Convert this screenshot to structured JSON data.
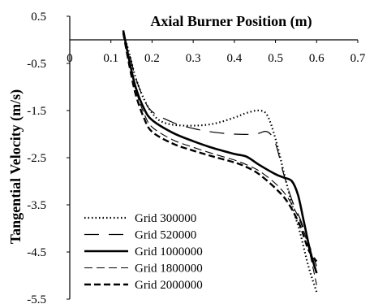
{
  "chart_data": {
    "type": "line",
    "xlabel": "Axial Burner Position (m)",
    "ylabel": "Tangential Velocity (m/s)",
    "xlim": [
      0,
      0.7
    ],
    "ylim": [
      -5.5,
      0.5
    ],
    "xticks": [
      "0",
      "0.1",
      "0.2",
      "0.3",
      "0.4",
      "0.5",
      "0.6",
      "0.7"
    ],
    "yticks": [
      "0.5",
      "-0.5",
      "-1.5",
      "-2.5",
      "-3.5",
      "-4.5",
      "-5.5"
    ],
    "x_axis_position": "top (crosses at y = 0)",
    "grid": false,
    "legend_position": "bottom-left",
    "series": [
      {
        "name": "Grid 300000",
        "style": "dotted",
        "x": [
          0.13,
          0.145,
          0.16,
          0.18,
          0.2,
          0.22,
          0.25,
          0.3,
          0.35,
          0.4,
          0.43,
          0.46,
          0.48,
          0.5,
          0.52,
          0.54,
          0.56,
          0.58,
          0.6
        ],
        "y": [
          0.15,
          -0.3,
          -0.8,
          -1.25,
          -1.55,
          -1.72,
          -1.8,
          -1.82,
          -1.78,
          -1.65,
          -1.55,
          -1.5,
          -1.6,
          -2.1,
          -2.8,
          -3.5,
          -4.1,
          -4.8,
          -5.35
        ]
      },
      {
        "name": "Grid 520000",
        "style": "long-dash",
        "x": [
          0.13,
          0.145,
          0.16,
          0.18,
          0.2,
          0.25,
          0.3,
          0.35,
          0.4,
          0.45,
          0.48,
          0.5,
          0.52,
          0.54,
          0.56,
          0.58,
          0.6
        ],
        "y": [
          0.15,
          -0.3,
          -0.8,
          -1.25,
          -1.52,
          -1.75,
          -1.88,
          -1.96,
          -2.0,
          -2.0,
          -1.95,
          -2.2,
          -2.85,
          -3.4,
          -3.8,
          -4.3,
          -4.8
        ]
      },
      {
        "name": "Grid 1000000",
        "style": "solid-thick",
        "x": [
          0.13,
          0.145,
          0.16,
          0.18,
          0.2,
          0.25,
          0.3,
          0.35,
          0.4,
          0.43,
          0.46,
          0.5,
          0.52,
          0.54,
          0.555,
          0.57,
          0.585,
          0.6
        ],
        "y": [
          0.2,
          -0.45,
          -1.0,
          -1.45,
          -1.7,
          -1.97,
          -2.15,
          -2.3,
          -2.42,
          -2.48,
          -2.65,
          -2.85,
          -2.92,
          -3.0,
          -3.3,
          -3.9,
          -4.5,
          -4.95
        ]
      },
      {
        "name": "Grid 1800000",
        "style": "dashed-thin",
        "x": [
          0.13,
          0.145,
          0.16,
          0.18,
          0.2,
          0.25,
          0.3,
          0.35,
          0.4,
          0.43,
          0.46,
          0.5,
          0.53,
          0.56,
          0.58,
          0.6
        ],
        "y": [
          0.15,
          -0.5,
          -1.05,
          -1.55,
          -1.85,
          -2.12,
          -2.28,
          -2.42,
          -2.55,
          -2.65,
          -2.78,
          -3.05,
          -3.35,
          -3.85,
          -4.4,
          -5.2
        ]
      },
      {
        "name": "Grid 2000000",
        "style": "dashed-thick",
        "x": [
          0.13,
          0.145,
          0.16,
          0.18,
          0.2,
          0.25,
          0.3,
          0.35,
          0.4,
          0.43,
          0.46,
          0.5,
          0.53,
          0.56,
          0.58,
          0.6
        ],
        "y": [
          0.15,
          -0.55,
          -1.15,
          -1.65,
          -1.95,
          -2.2,
          -2.35,
          -2.48,
          -2.6,
          -2.7,
          -2.85,
          -3.15,
          -3.45,
          -3.95,
          -4.45,
          -4.7
        ]
      }
    ]
  }
}
